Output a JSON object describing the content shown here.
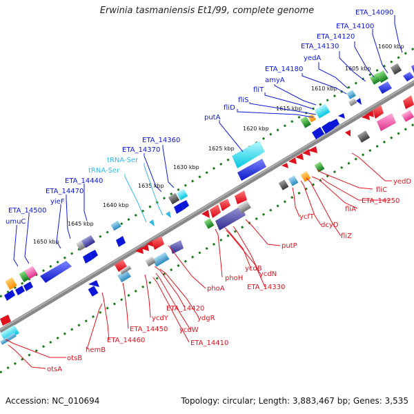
{
  "title": "Erwinia tasmaniensis Et1/99, complete genome",
  "footer": {
    "accession_label": "Accession:",
    "accession": "NC_010694",
    "topology_label": "Topology:",
    "topology": "circular",
    "length_label": "Length:",
    "length": "3,883,467 bp",
    "genes_label": "Genes:",
    "genes": "3,535"
  },
  "colors": {
    "forward_gene": "#0a16d8",
    "reverse_gene": "#e0101c",
    "trna": "#35b8e8",
    "tick": "#1a7a1a",
    "backbone": "#7a7a7a"
  },
  "ticks": [
    "1650 kbp",
    "1645 kbp",
    "1640 kbp",
    "1635 kbp",
    "1630 kbp",
    "1625 kbp",
    "1620 kbp",
    "1615 kbp",
    "1610 kbp",
    "1605 kbp",
    "1600 kbp"
  ],
  "forward_labels": [
    "ETA_14090",
    "ETA_14100",
    "ETA_14120",
    "ETA_14130",
    "yedA",
    "ETA_14180",
    "amyA",
    "fliT",
    "fliS",
    "fliD",
    "putA",
    "ETA_14360",
    "ETA_14370",
    "ETA_14440",
    "ETA_14470",
    "yieF",
    "ETA_14500",
    "umuC"
  ],
  "trna_labels": [
    "tRNA-Ser",
    "tRNA-Ser"
  ],
  "reverse_labels": [
    "yedD",
    "fliC",
    "ETA_14250",
    "fliA",
    "fliZ",
    "dcyD",
    "ycfT",
    "putP",
    "ycdN",
    "ETA_14330",
    "ycdB",
    "phoH",
    "phoA",
    "ETA_14420",
    "ydgR",
    "ycdW",
    "ETA_14410",
    "ycdY",
    "ETA_14450",
    "ETA_14460",
    "hemB",
    "otsB",
    "otsA"
  ]
}
